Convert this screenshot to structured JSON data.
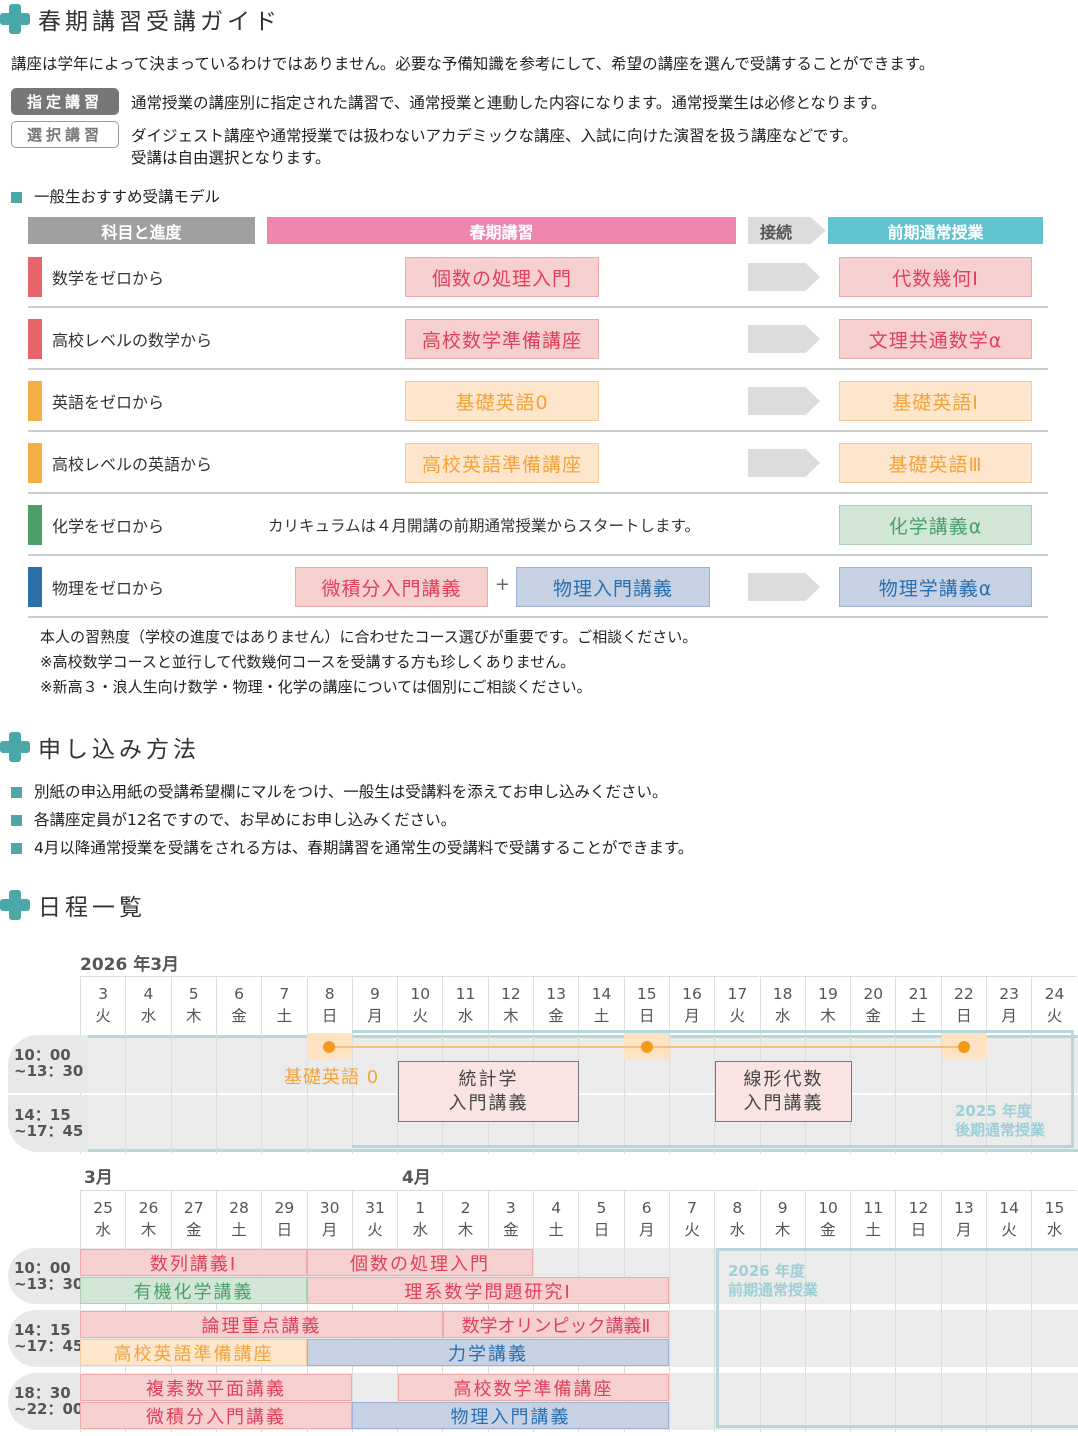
{
  "guide": {
    "title": "春期講習受講ガイド",
    "intro": "講座は学年によって決まっているわけではありません。必要な予備知識を参考にして、希望の講座を選んで受講することができます。",
    "badges": [
      {
        "label": "指定講習",
        "desc": "通常授業の講座別に指定された講習で、通常授業と連動した内容になります。通常授業生は必修となります。"
      },
      {
        "label": "選択講習",
        "desc": "ダイジェスト講座や通常授業では扱わないアカデミックな講座、入試に向けた演習を扱う講座などです。",
        "desc2": "受講は自由選択となります。"
      }
    ],
    "model_title": "一般生おすすめ受講モデル",
    "headers": {
      "subject": "科目と進度",
      "spring": "春期講習",
      "connect": "接続",
      "regular": "前期通常授業"
    },
    "rows": [
      {
        "label": "数学をゼロから",
        "color": "#e8636a",
        "spring": [
          "個数の処理入門"
        ],
        "regular": "代数幾何Ⅰ"
      },
      {
        "label": "高校レベルの数学から",
        "color": "#e8636a",
        "spring": [
          "高校数学準備講座"
        ],
        "regular": "文理共通数学α"
      },
      {
        "label": "英語をゼロから",
        "color": "#f5ae42",
        "spring": [
          "基礎英語0"
        ],
        "regular": "基礎英語Ⅰ"
      },
      {
        "label": "高校レベルの英語から",
        "color": "#f5ae42",
        "spring": [
          "高校英語準備講座"
        ],
        "regular": "基礎英語Ⅲ"
      },
      {
        "label": "化学をゼロから",
        "color": "#4e9e6a",
        "note": "カリキュラムは４月開講の前期通常授業からスタートします。",
        "regular": "化学講義α"
      },
      {
        "label": "物理をゼロから",
        "color": "#2b70a8",
        "spring": [
          "微積分入門講義",
          "物理入門講義"
        ],
        "plus": "+",
        "regular": "物理学講義α"
      }
    ],
    "notes": [
      "本人の習熟度（学校の進度ではありません）に合わせたコース選びが重要です。ご相談ください。",
      "※高校数学コースと並行して代数幾何コースを受講する方も珍しくありません。",
      "※新高３・浪人生向け数学・物理・化学の講座については個別にご相談ください。"
    ]
  },
  "apply": {
    "title": "申し込み方法",
    "items": [
      "別紙の申込用紙の受講希望欄にマルをつけ、一般生は受講料を添えてお申し込みください。",
      "各講座定員が12名ですので、お早めにお申し込みください。",
      "4月以降通常授業を受講をされる方は、春期講習を通常生の受講料で受講することができます。"
    ]
  },
  "schedule": {
    "title": "日程一覧",
    "cal1": {
      "month_label": "2026 年3月",
      "days": [
        [
          "3",
          "火"
        ],
        [
          "4",
          "水"
        ],
        [
          "5",
          "木"
        ],
        [
          "6",
          "金"
        ],
        [
          "7",
          "土"
        ],
        [
          "8",
          "日"
        ],
        [
          "9",
          "月"
        ],
        [
          "10",
          "火"
        ],
        [
          "11",
          "水"
        ],
        [
          "12",
          "木"
        ],
        [
          "13",
          "金"
        ],
        [
          "14",
          "土"
        ],
        [
          "15",
          "日"
        ],
        [
          "16",
          "月"
        ],
        [
          "17",
          "火"
        ],
        [
          "18",
          "水"
        ],
        [
          "19",
          "木"
        ],
        [
          "20",
          "金"
        ],
        [
          "21",
          "土"
        ],
        [
          "22",
          "日"
        ],
        [
          "23",
          "月"
        ],
        [
          "24",
          "火"
        ]
      ],
      "times": [
        [
          "10：00",
          "~13：30"
        ],
        [
          "14：15",
          "~17：45"
        ]
      ],
      "kiso_label": "基礎英語 0",
      "events": [
        {
          "l1": "統計学",
          "l2": "入門講義"
        },
        {
          "l1": "線形代数",
          "l2": "入門講義"
        }
      ],
      "term_label": [
        "2025 年度",
        "後期通常授業"
      ]
    },
    "cal2": {
      "month_label_3": "3月",
      "month_label_4": "4月",
      "days": [
        [
          "25",
          "水"
        ],
        [
          "26",
          "木"
        ],
        [
          "27",
          "金"
        ],
        [
          "28",
          "土"
        ],
        [
          "29",
          "日"
        ],
        [
          "30",
          "月"
        ],
        [
          "31",
          "火"
        ],
        [
          "1",
          "水"
        ],
        [
          "2",
          "木"
        ],
        [
          "3",
          "金"
        ],
        [
          "4",
          "土"
        ],
        [
          "5",
          "日"
        ],
        [
          "6",
          "月"
        ],
        [
          "7",
          "火"
        ],
        [
          "8",
          "水"
        ],
        [
          "9",
          "木"
        ],
        [
          "10",
          "金"
        ],
        [
          "11",
          "土"
        ],
        [
          "12",
          "日"
        ],
        [
          "13",
          "月"
        ],
        [
          "14",
          "火"
        ],
        [
          "15",
          "水"
        ]
      ],
      "times": [
        [
          "10：00",
          "~13：30"
        ],
        [
          "14：15",
          "~17：45"
        ],
        [
          "18：30",
          "~22：00"
        ]
      ],
      "events": [
        "数列講義Ⅰ",
        "個数の処理入門",
        "有機化学講義",
        "理系数学問題研究Ⅰ",
        "論理重点講義",
        "数学オリンピック講義Ⅱ",
        "高校英語準備講座",
        "力学講義",
        "複素数平面講義",
        "高校数学準備講座",
        "微積分入門講義",
        "物理入門講義"
      ],
      "term_label": [
        "2026 年度",
        "前期通常授業"
      ]
    }
  }
}
